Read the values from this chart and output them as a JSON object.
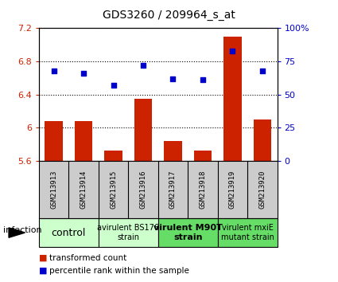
{
  "title": "GDS3260 / 209964_s_at",
  "samples": [
    "GSM213913",
    "GSM213914",
    "GSM213915",
    "GSM213916",
    "GSM213917",
    "GSM213918",
    "GSM213919",
    "GSM213920"
  ],
  "bar_values": [
    6.08,
    6.08,
    5.72,
    6.35,
    5.84,
    5.72,
    7.1,
    6.1
  ],
  "dot_values": [
    68,
    66,
    57,
    72,
    62,
    61,
    83,
    68
  ],
  "ylim_left": [
    5.6,
    7.2
  ],
  "ylim_right": [
    0,
    100
  ],
  "yticks_left": [
    5.6,
    6.0,
    6.4,
    6.8,
    7.2
  ],
  "yticks_right": [
    0,
    25,
    50,
    75,
    100
  ],
  "yticklabels_left": [
    "5.6",
    "6",
    "6.4",
    "6.8",
    "7.2"
  ],
  "yticklabels_right": [
    "0",
    "25",
    "50",
    "75",
    "100%"
  ],
  "bar_color": "#cc2200",
  "dot_color": "#0000cc",
  "bar_bottom": 5.6,
  "groups": [
    {
      "label": "control",
      "span": [
        0,
        1
      ],
      "color": "#ccffcc",
      "fontsize": 9,
      "bold": false
    },
    {
      "label": "avirulent BS176\nstrain",
      "span": [
        2,
        3
      ],
      "color": "#ccffcc",
      "fontsize": 7,
      "bold": false
    },
    {
      "label": "virulent M90T\nstrain",
      "span": [
        4,
        5
      ],
      "color": "#66dd66",
      "fontsize": 8,
      "bold": true
    },
    {
      "label": "virulent mxiE\nmutant strain",
      "span": [
        6,
        7
      ],
      "color": "#66dd66",
      "fontsize": 7,
      "bold": false
    }
  ],
  "infection_label": "infection",
  "legend_bar_label": "transformed count",
  "legend_dot_label": "percentile rank within the sample",
  "grid_color": "black",
  "background_gray": "#cccccc"
}
